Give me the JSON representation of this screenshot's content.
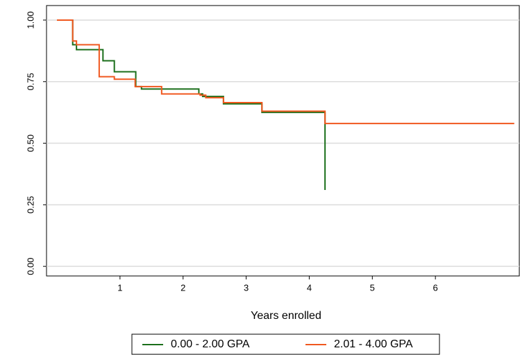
{
  "chart_data": {
    "type": "step",
    "xlabel": "Years enrolled",
    "xlim": [
      -0.165,
      7.33
    ],
    "ylim": [
      -0.039,
      1.059
    ],
    "xticks": [
      1,
      2,
      3,
      4,
      5,
      6
    ],
    "yticks": [
      {
        "value": 0,
        "label": "0.00"
      },
      {
        "value": 0.25,
        "label": "0.25"
      },
      {
        "value": 0.5,
        "label": "0.50"
      },
      {
        "value": 0.75,
        "label": "0.75"
      },
      {
        "value": 1,
        "label": "1.00"
      }
    ],
    "grid": true,
    "legend": "bottom",
    "series": [
      {
        "name": "0.00 - 2.00 GPA",
        "color": "#1a6e1a",
        "x": [
          0,
          0.25,
          0.31,
          0.73,
          0.91,
          1.25,
          1.34,
          2.25,
          2.31,
          2.64,
          3.25,
          4.25
        ],
        "values": [
          1.0,
          0.9,
          0.88,
          0.835,
          0.79,
          0.73,
          0.72,
          0.7,
          0.69,
          0.66,
          0.625,
          0.31
        ]
      },
      {
        "name": "2.01 - 4.00 GPA",
        "color": "#f0571e",
        "x": [
          0,
          0.25,
          0.31,
          0.67,
          0.91,
          1.24,
          1.66,
          2.27,
          2.36,
          2.64,
          3.25,
          4.25,
          7.25
        ],
        "values": [
          1.0,
          0.915,
          0.9,
          0.77,
          0.76,
          0.73,
          0.7,
          0.695,
          0.685,
          0.665,
          0.63,
          0.58,
          0.58
        ]
      }
    ]
  }
}
